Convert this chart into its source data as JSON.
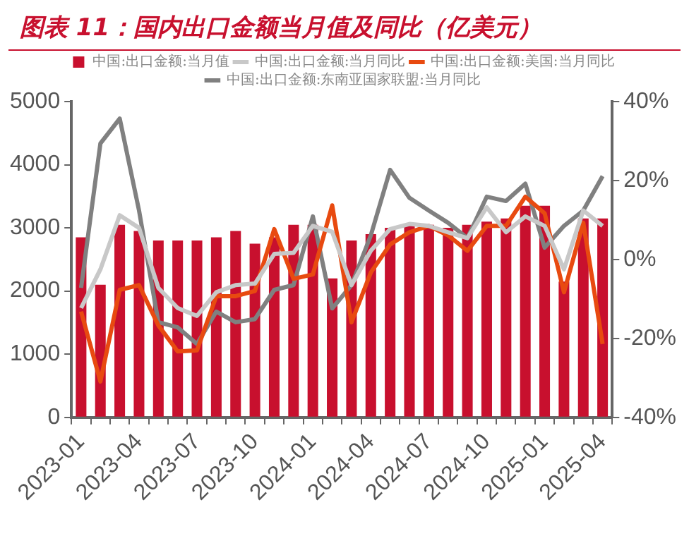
{
  "chart_data": {
    "type": "bar",
    "title": "图表 11：国内出口金额当月值及同比（亿美元）",
    "categories": [
      "2023-01",
      null,
      null,
      "2023-04",
      null,
      null,
      "2023-07",
      null,
      null,
      "2023-10",
      null,
      null,
      "2024-01",
      null,
      null,
      "2024-04",
      null,
      null,
      "2024-07",
      null,
      null,
      "2024-10",
      null,
      null,
      "2025-01",
      null,
      null,
      "2025-04"
    ],
    "series": [
      {
        "name": "中国:出口金额:当月值",
        "color": "#c8102e",
        "values": [
          2850,
          2100,
          3050,
          2950,
          2800,
          2800,
          2800,
          2850,
          2950,
          2750,
          2850,
          3050,
          3050,
          2200,
          2800,
          2900,
          3000,
          3050,
          3050,
          3000,
          3050,
          3100,
          3150,
          3350,
          3350,
          2150,
          3150,
          3150
        ]
      },
      {
        "name": "中国:出口金额:当月同比",
        "type": "line",
        "axis": "y2",
        "color": "#c8c8c8",
        "values": [
          -12.3,
          -2.5,
          11.2,
          8,
          -7.2,
          -12.3,
          -14.3,
          -8.3,
          -6.5,
          -6.1,
          1.4,
          1.7,
          8.5,
          7,
          -6.5,
          2.2,
          7.7,
          9,
          8.5,
          6.9,
          5.4,
          13.2,
          6.9,
          10.9,
          8.5,
          -2.5,
          12.4,
          8.5
        ]
      },
      {
        "name": "中国:出口金额:美国:当月同比",
        "type": "line",
        "axis": "y2",
        "color": "#e84a10",
        "values": [
          -13.2,
          -30.9,
          -7.7,
          -6.5,
          -16.7,
          -23.3,
          -23,
          -9.3,
          -9.3,
          -8,
          7.7,
          -4.9,
          -3.8,
          13.7,
          -15.9,
          -3.3,
          3.8,
          6.9,
          8.5,
          6.1,
          2.2,
          8.5,
          8.5,
          15.9,
          11.7,
          -8.3,
          9.3,
          -21.4
        ]
      },
      {
        "name": "中国:出口金额:东南亚国家联盟:当月同比",
        "type": "line",
        "axis": "y2",
        "color": "#808080",
        "values": [
          -7.2,
          29.4,
          35.7,
          12.4,
          -15.9,
          -17.2,
          -21.4,
          -13.2,
          -15.9,
          -15.1,
          -7.7,
          -6.5,
          10.9,
          -12.4,
          -6.5,
          6.1,
          22.7,
          15.6,
          12.4,
          9.3,
          5.4,
          15.9,
          14.8,
          19.2,
          3,
          8.5,
          12.4,
          21.1
        ]
      }
    ],
    "ylim": [
      0,
      5000
    ],
    "yticks": [
      0,
      1000,
      2000,
      3000,
      4000,
      5000
    ],
    "y2lim": [
      -40,
      40
    ],
    "y2ticks": [
      {
        "value": -40,
        "label": "-40%"
      },
      {
        "value": -20,
        "label": "-20%"
      },
      {
        "value": 0,
        "label": "0%"
      },
      {
        "value": 20,
        "label": "20%"
      },
      {
        "value": 40,
        "label": "40%"
      }
    ],
    "legend": "top",
    "grid": false,
    "marker": "none",
    "line_style": "solid"
  }
}
